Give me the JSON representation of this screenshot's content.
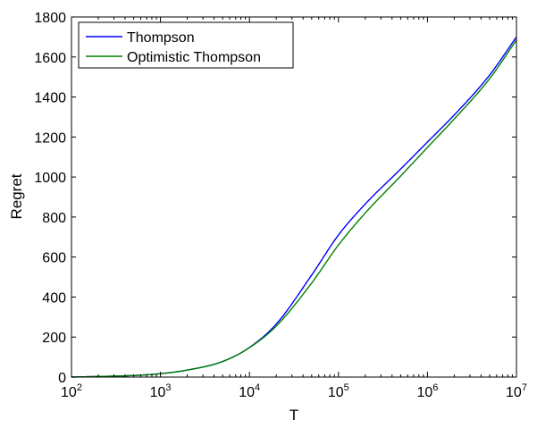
{
  "chart_data": {
    "type": "line",
    "xlabel": "T",
    "ylabel": "Regret",
    "xscale": "log",
    "xlim": [
      100,
      10000000
    ],
    "ylim": [
      0,
      1800
    ],
    "x_ticks": [
      {
        "value": 100,
        "base": "10",
        "exp": "2"
      },
      {
        "value": 1000,
        "base": "10",
        "exp": "3"
      },
      {
        "value": 10000,
        "base": "10",
        "exp": "4"
      },
      {
        "value": 100000,
        "base": "10",
        "exp": "5"
      },
      {
        "value": 1000000,
        "base": "10",
        "exp": "6"
      },
      {
        "value": 10000000,
        "base": "10",
        "exp": "7"
      }
    ],
    "y_ticks": [
      0,
      200,
      400,
      600,
      800,
      1000,
      1200,
      1400,
      1600,
      1800
    ],
    "grid": false,
    "legend_position": "top-left",
    "series": [
      {
        "name": "Thompson",
        "color": "#0000ff",
        "points": [
          [
            100,
            0
          ],
          [
            200,
            3
          ],
          [
            500,
            8
          ],
          [
            1000,
            17
          ],
          [
            2000,
            35
          ],
          [
            5000,
            78
          ],
          [
            10000,
            148
          ],
          [
            20000,
            265
          ],
          [
            50000,
            510
          ],
          [
            100000,
            710
          ],
          [
            200000,
            865
          ],
          [
            500000,
            1040
          ],
          [
            1000000,
            1175
          ],
          [
            2000000,
            1310
          ],
          [
            5000000,
            1510
          ],
          [
            10000000,
            1700
          ]
        ]
      },
      {
        "name": "Optimistic Thompson",
        "color": "#008000",
        "points": [
          [
            100,
            0
          ],
          [
            200,
            3
          ],
          [
            500,
            8
          ],
          [
            1000,
            17
          ],
          [
            2000,
            35
          ],
          [
            5000,
            78
          ],
          [
            10000,
            147
          ],
          [
            20000,
            255
          ],
          [
            50000,
            470
          ],
          [
            100000,
            660
          ],
          [
            200000,
            820
          ],
          [
            500000,
            1005
          ],
          [
            1000000,
            1148
          ],
          [
            2000000,
            1290
          ],
          [
            5000000,
            1492
          ],
          [
            10000000,
            1685
          ]
        ]
      }
    ]
  }
}
